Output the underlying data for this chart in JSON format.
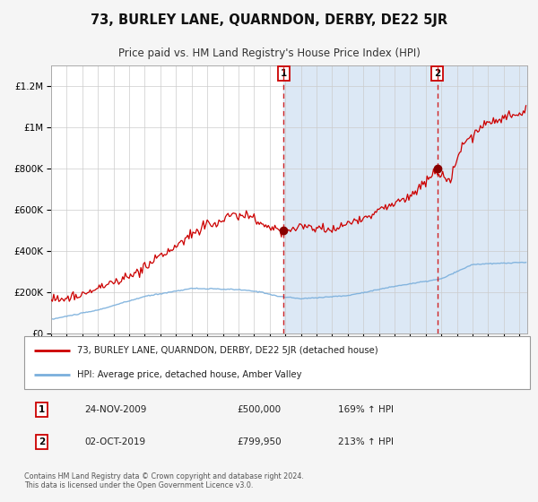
{
  "title": "73, BURLEY LANE, QUARNDON, DERBY, DE22 5JR",
  "subtitle": "Price paid vs. HM Land Registry's House Price Index (HPI)",
  "red_label": "73, BURLEY LANE, QUARNDON, DERBY, DE22 5JR (detached house)",
  "blue_label": "HPI: Average price, detached house, Amber Valley",
  "annotation1_date": "24-NOV-2009",
  "annotation1_price": "£500,000",
  "annotation1_hpi": "169% ↑ HPI",
  "annotation1_year": 2009.9,
  "annotation1_value": 500000,
  "annotation2_date": "02-OCT-2019",
  "annotation2_price": "£799,950",
  "annotation2_hpi": "213% ↑ HPI",
  "annotation2_year": 2019.75,
  "annotation2_value": 799950,
  "ylim": [
    0,
    1300000
  ],
  "xlim_start": 1995.0,
  "xlim_end": 2025.5,
  "footer": "Contains HM Land Registry data © Crown copyright and database right 2024.\nThis data is licensed under the Open Government Licence v3.0.",
  "bg_color": "#f5f5f5",
  "plot_bg": "#ffffff",
  "red_color": "#cc0000",
  "blue_color": "#7aafdc",
  "shade_color": "#dce8f5",
  "hatch_color": "#c8d8ea"
}
